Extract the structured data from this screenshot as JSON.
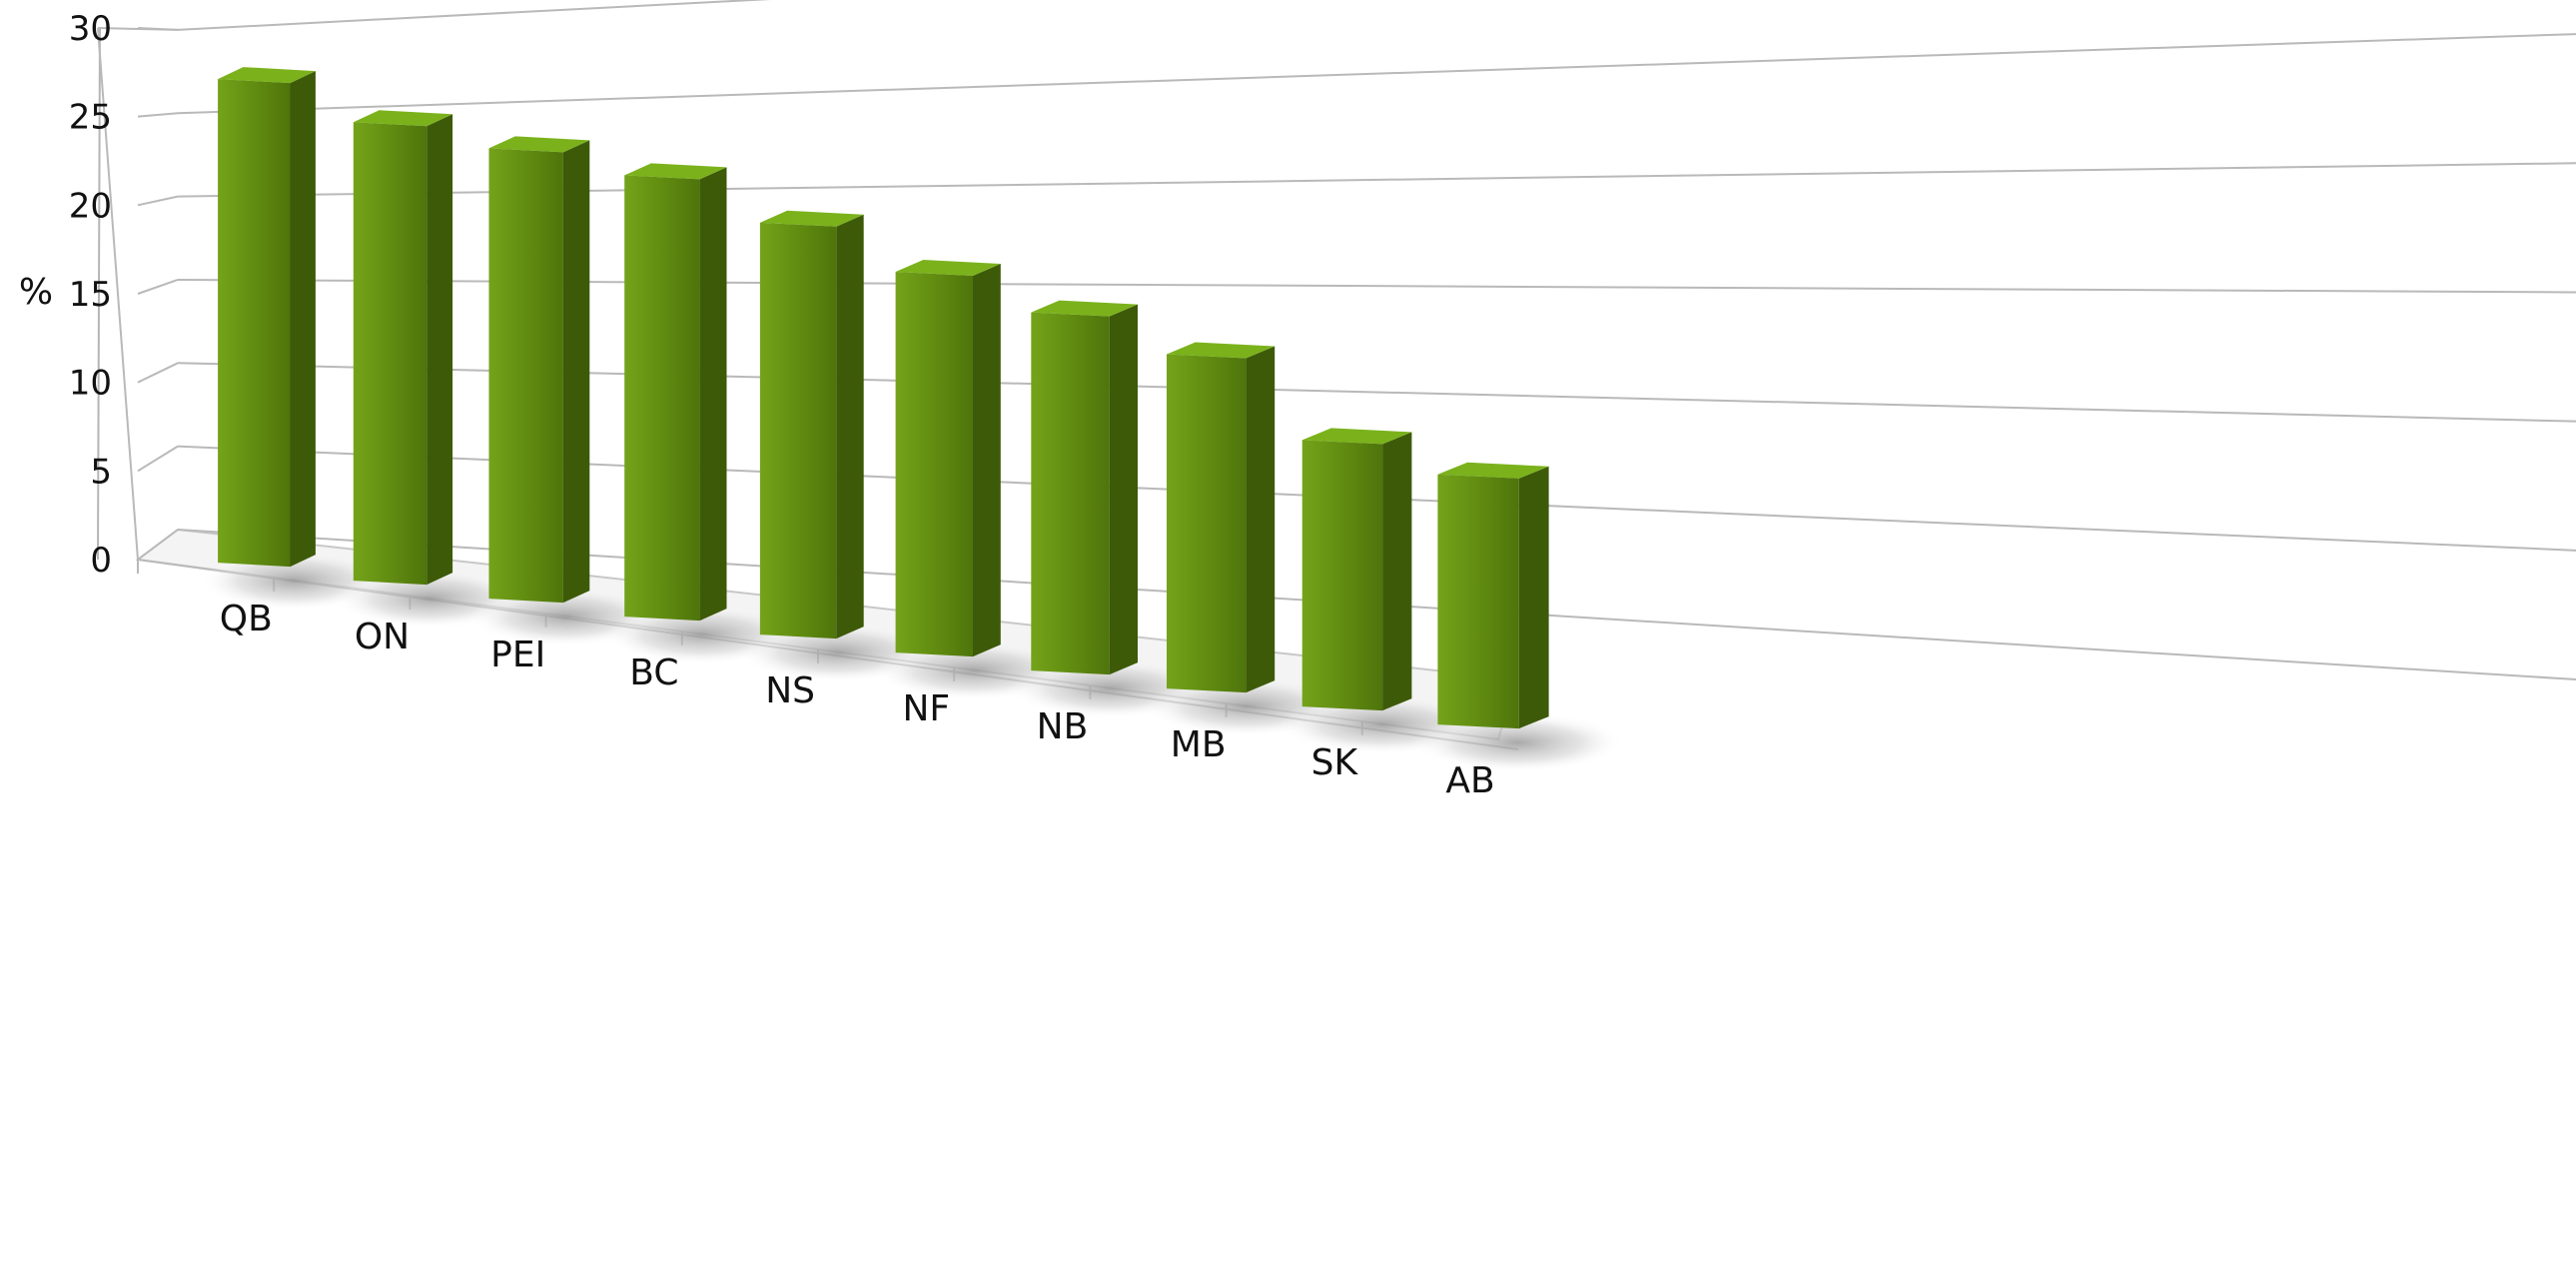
{
  "chart_data": {
    "type": "bar",
    "style": "3d-perspective",
    "title": "",
    "xlabel": "",
    "ylabel": "%",
    "ylim": [
      0,
      30
    ],
    "yticks": [
      0,
      5,
      10,
      15,
      20,
      25,
      30
    ],
    "grid": true,
    "legend": "none",
    "categories": [
      "QB",
      "ON",
      "PEI",
      "BC",
      "NS",
      "NF",
      "NB",
      "MB",
      "SK",
      "AB"
    ],
    "series": [
      {
        "values": [
          27,
          25,
          24,
          23,
          21,
          19,
          17.5,
          16,
          12.5,
          11.5
        ],
        "color": "#5f8a10"
      }
    ]
  }
}
